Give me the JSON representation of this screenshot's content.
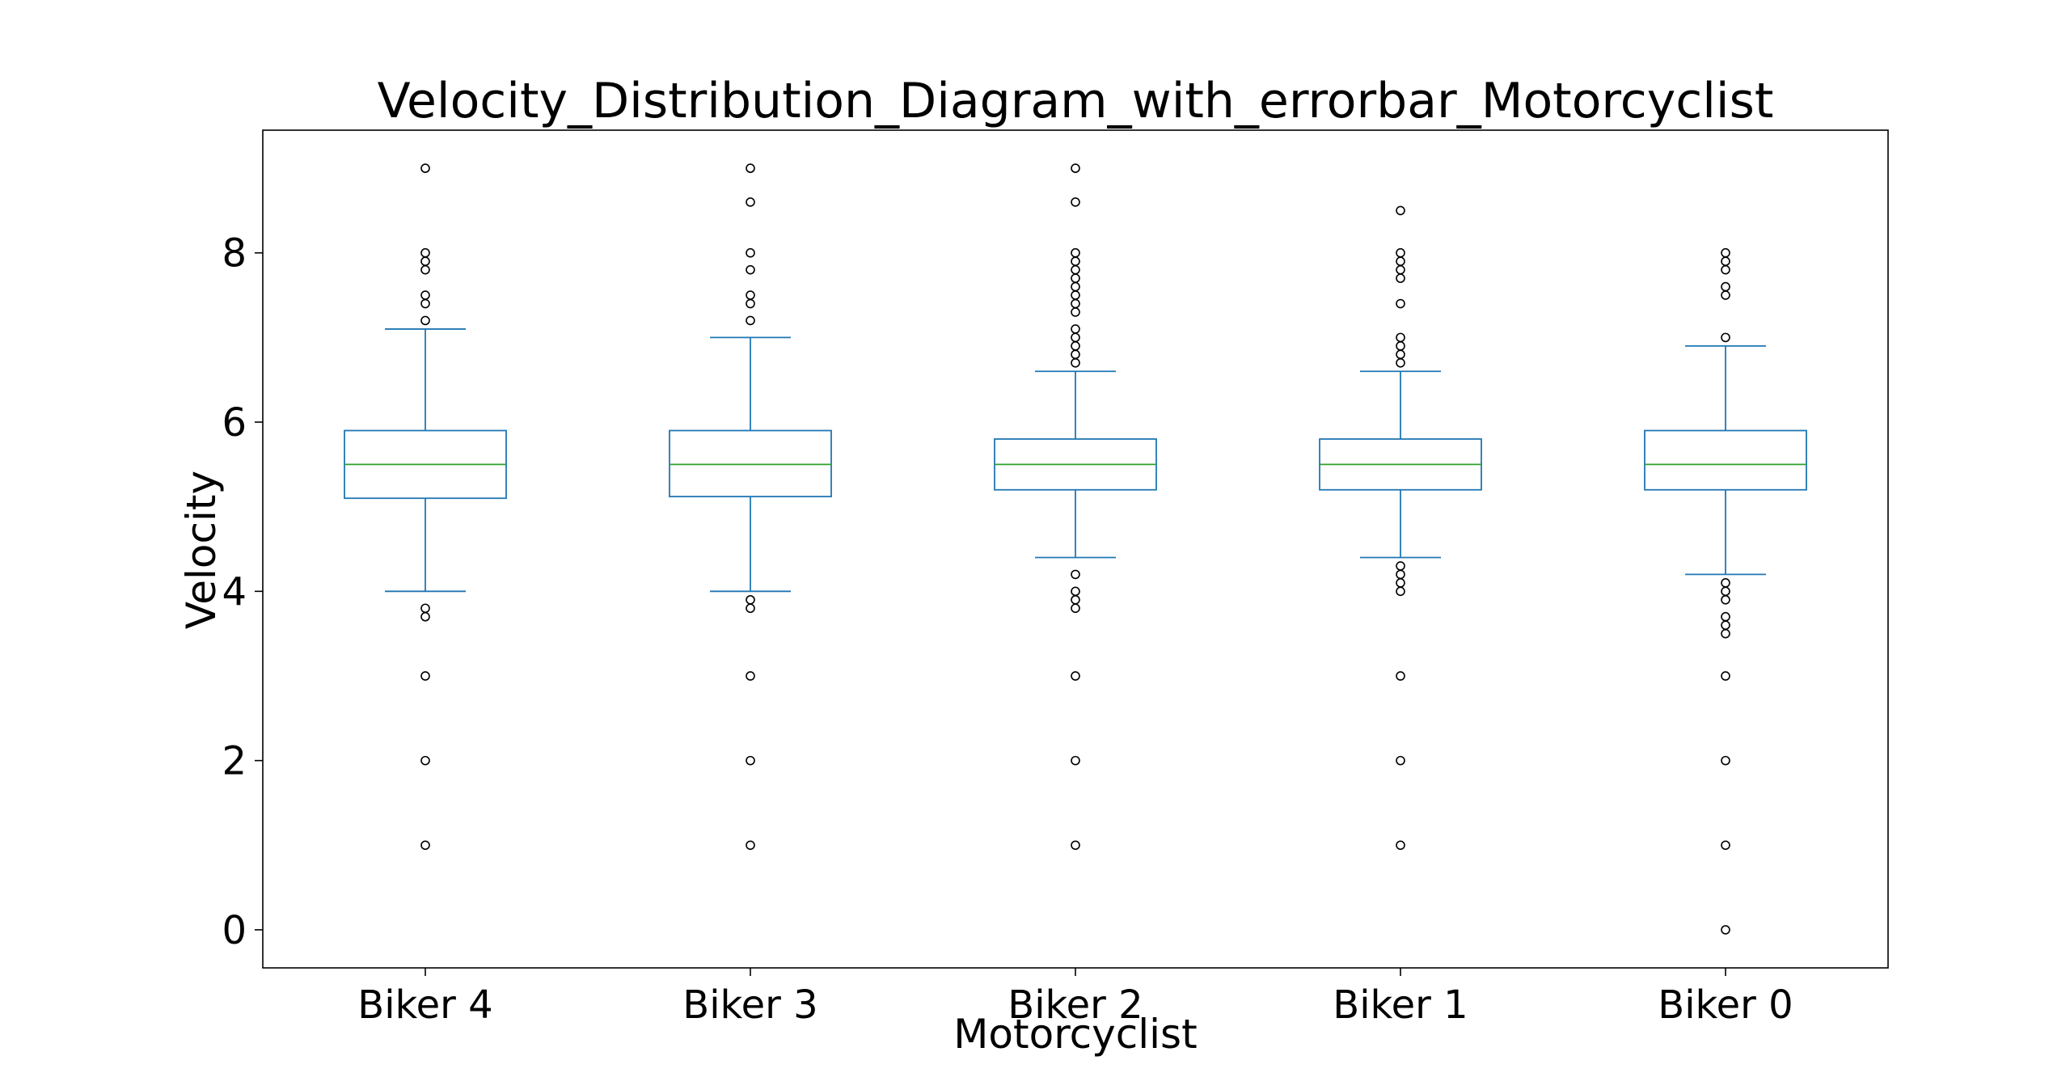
{
  "chart_data": {
    "type": "box",
    "title": "Velocity_Distribution_Diagram_with_errorbar_Motorcyclist",
    "xlabel": "Motorcyclist",
    "ylabel": "Velocity",
    "ylim": [
      -0.45,
      9.45
    ],
    "yticks": [
      0,
      2,
      4,
      6,
      8
    ],
    "grid": false,
    "colors": {
      "box": "#1f77b4",
      "median": "#2ca02c",
      "flier": "#000000",
      "frame": "#000000"
    },
    "categories": [
      "Biker 4",
      "Biker 3",
      "Biker 2",
      "Biker 1",
      "Biker 0"
    ],
    "boxes": [
      {
        "name": "Biker 4",
        "whisker_low": 4.0,
        "q1": 5.1,
        "median": 5.5,
        "q3": 5.9,
        "whisker_high": 7.1,
        "fliers": [
          9.0,
          8.0,
          7.9,
          7.8,
          7.5,
          7.4,
          7.2,
          3.8,
          3.7,
          3.0,
          2.0,
          1.0
        ]
      },
      {
        "name": "Biker 3",
        "whisker_low": 4.0,
        "q1": 5.12,
        "median": 5.5,
        "q3": 5.9,
        "whisker_high": 7.0,
        "fliers": [
          9.0,
          8.6,
          8.0,
          7.8,
          7.5,
          7.4,
          7.2,
          3.9,
          3.8,
          3.0,
          2.0,
          1.0
        ]
      },
      {
        "name": "Biker 2",
        "whisker_low": 4.4,
        "q1": 5.2,
        "median": 5.5,
        "q3": 5.8,
        "whisker_high": 6.6,
        "fliers": [
          9.0,
          8.6,
          8.0,
          7.9,
          7.8,
          7.7,
          7.6,
          7.5,
          7.4,
          7.3,
          7.1,
          7.0,
          6.9,
          6.8,
          6.7,
          4.2,
          4.0,
          3.9,
          3.8,
          3.0,
          2.0,
          1.0
        ]
      },
      {
        "name": "Biker 1",
        "whisker_low": 4.4,
        "q1": 5.2,
        "median": 5.5,
        "q3": 5.8,
        "whisker_high": 6.6,
        "fliers": [
          8.5,
          8.0,
          7.9,
          7.8,
          7.7,
          7.4,
          7.0,
          6.9,
          6.8,
          6.7,
          4.3,
          4.2,
          4.1,
          4.0,
          3.0,
          2.0,
          1.0
        ]
      },
      {
        "name": "Biker 0",
        "whisker_low": 4.2,
        "q1": 5.2,
        "median": 5.5,
        "q3": 5.9,
        "whisker_high": 6.9,
        "fliers": [
          8.0,
          7.9,
          7.8,
          7.6,
          7.5,
          7.0,
          4.1,
          4.0,
          3.9,
          3.7,
          3.6,
          3.5,
          3.0,
          2.0,
          1.0,
          0.0
        ]
      }
    ]
  }
}
